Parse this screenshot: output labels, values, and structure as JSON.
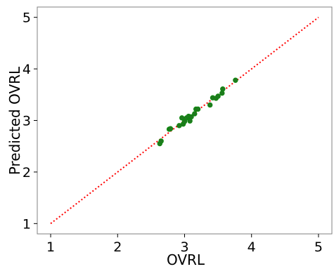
{
  "chart_data": {
    "type": "scatter",
    "xlabel": "OVRL",
    "ylabel": "Predicted OVRL",
    "xlim": [
      0.8,
      5.2
    ],
    "ylim": [
      0.8,
      5.2
    ],
    "xticks": [
      1,
      2,
      3,
      4,
      5
    ],
    "yticks": [
      1,
      2,
      3,
      4,
      5
    ],
    "xtick_labels": [
      "1",
      "2",
      "3",
      "4",
      "5"
    ],
    "ytick_labels": [
      "1",
      "2",
      "3",
      "4",
      "5"
    ],
    "grid": false,
    "reference_line": {
      "style": "dotted",
      "color": "#ff0000",
      "x": [
        1,
        5
      ],
      "y": [
        1,
        5
      ]
    },
    "marker_color": "#1f7a1f",
    "marker_edge_color": "#0a8a0a",
    "series": [
      {
        "x": [
          2.63,
          2.65,
          2.77,
          2.79,
          2.92,
          2.96,
          2.98,
          3.0,
          3.03,
          3.06,
          3.08,
          3.1,
          3.15,
          3.17,
          3.2,
          3.38,
          3.42,
          3.47,
          3.5,
          3.56,
          3.57,
          3.76
        ],
        "y": [
          2.55,
          2.6,
          2.83,
          2.84,
          2.9,
          3.05,
          2.93,
          2.98,
          3.05,
          3.08,
          2.99,
          3.07,
          3.13,
          3.22,
          3.22,
          3.3,
          3.44,
          3.43,
          3.47,
          3.53,
          3.61,
          3.78
        ]
      }
    ]
  }
}
